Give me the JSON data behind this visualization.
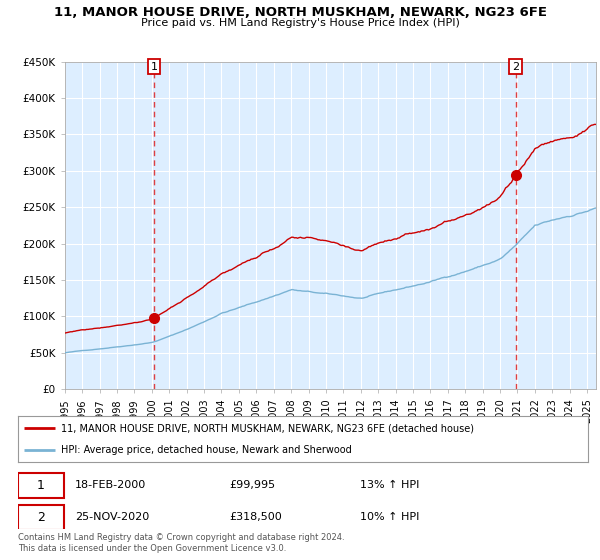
{
  "title": "11, MANOR HOUSE DRIVE, NORTH MUSKHAM, NEWARK, NG23 6FE",
  "subtitle": "Price paid vs. HM Land Registry's House Price Index (HPI)",
  "background_color": "#ffffff",
  "plot_bg_color": "#ddeeff",
  "ylim": [
    0,
    450000
  ],
  "yticks": [
    0,
    50000,
    100000,
    150000,
    200000,
    250000,
    300000,
    350000,
    400000,
    450000
  ],
  "ytick_labels": [
    "£0",
    "£50K",
    "£100K",
    "£150K",
    "£200K",
    "£250K",
    "£300K",
    "£350K",
    "£400K",
    "£450K"
  ],
  "xlim_start": 1995.0,
  "xlim_end": 2025.5,
  "xticks": [
    1995,
    1996,
    1997,
    1998,
    1999,
    2000,
    2001,
    2002,
    2003,
    2004,
    2005,
    2006,
    2007,
    2008,
    2009,
    2010,
    2011,
    2012,
    2013,
    2014,
    2015,
    2016,
    2017,
    2018,
    2019,
    2020,
    2021,
    2022,
    2023,
    2024,
    2025
  ],
  "sale1_date": 2000.13,
  "sale1_price": 99995,
  "sale2_date": 2020.9,
  "sale2_price": 318500,
  "legend_property": "11, MANOR HOUSE DRIVE, NORTH MUSKHAM, NEWARK, NG23 6FE (detached house)",
  "legend_hpi": "HPI: Average price, detached house, Newark and Sherwood",
  "property_color": "#cc0000",
  "hpi_color": "#7ab3d4",
  "vline_color": "#dd2222",
  "marker_color": "#cc0000",
  "annotation1_date": "18-FEB-2000",
  "annotation1_price": "£99,995",
  "annotation1_hpi": "13% ↑ HPI",
  "annotation2_date": "25-NOV-2020",
  "annotation2_price": "£318,500",
  "annotation2_hpi": "10% ↑ HPI",
  "footnote": "Contains HM Land Registry data © Crown copyright and database right 2024.\nThis data is licensed under the Open Government Licence v3.0."
}
